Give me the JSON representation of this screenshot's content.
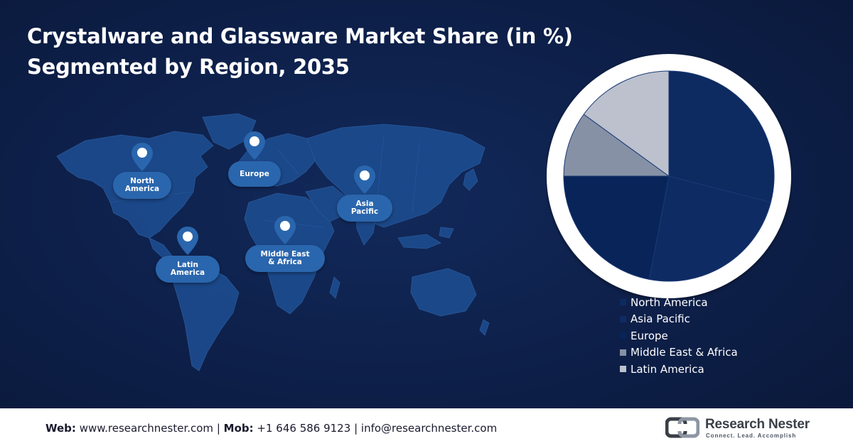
{
  "title": {
    "line1": "Crystalware and Glassware Market Share (in %)",
    "line2": "Segmented by Region, 2035"
  },
  "map": {
    "regions": [
      {
        "name": "North America",
        "line1": "North",
        "line2": "America"
      },
      {
        "name": "Europe",
        "line1": "Europe",
        "line2": ""
      },
      {
        "name": "Asia Pacific",
        "line1": "Asia",
        "line2": "Pacific"
      },
      {
        "name": "Latin America",
        "line1": "Latin",
        "line2": "America"
      },
      {
        "name": "Middle East & Africa",
        "line1": "Middle East",
        "line2": "& Africa"
      }
    ],
    "pin_icon": "map-pin-icon",
    "map_color": "#1c4a8c"
  },
  "chart_data": {
    "type": "pie",
    "title": "Crystalware and Glassware Market Share (in %) Segmented by Region, 2035",
    "categories": [
      "North America",
      "Asia Pacific",
      "Europe",
      "Middle East & Africa",
      "Latin America"
    ],
    "values": [
      29,
      24,
      22,
      10,
      15
    ],
    "colors": [
      "#0d2a61",
      "#0f2b63",
      "#082459",
      "#8691a6",
      "#bcc1cd"
    ],
    "legend_position": "bottom-right",
    "start_angle_deg": 0,
    "direction": "clockwise"
  },
  "footer": {
    "web_label": "Web:",
    "web_value": "www.researchnester.com",
    "sep1": "|",
    "mob_label": "Mob:",
    "mob_value": "+1 646 586 9123",
    "sep2": "|",
    "email": "info@researchnester.com",
    "logo_name": "Research Nester",
    "logo_tagline": "Connect. Lead. Accomplish"
  }
}
